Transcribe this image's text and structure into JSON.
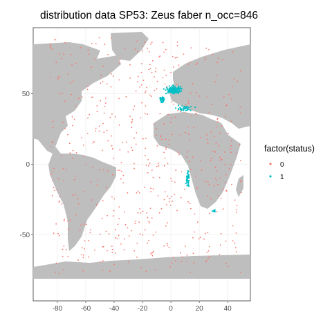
{
  "chart_data": {
    "type": "scatter",
    "title": "distribution data SP53: Zeus faber n_occ=846",
    "xlabel": "",
    "ylabel": "",
    "xlim": [
      -97,
      56
    ],
    "ylim": [
      -97,
      97
    ],
    "x_ticks": [
      -80,
      -60,
      -40,
      -20,
      0,
      20,
      40
    ],
    "y_ticks": [
      -50,
      0,
      50
    ],
    "x_tick_labels": [
      "-80",
      "-60",
      "-40",
      "-20",
      "0",
      "20",
      "40"
    ],
    "y_tick_labels": [
      "-50",
      "0",
      "50"
    ],
    "grid": true,
    "land_color": "#bebebe",
    "legend": {
      "title": "factor(status)",
      "position": "right",
      "entries": [
        {
          "label": "0",
          "color": "#f8766d"
        },
        {
          "label": "1",
          "color": "#00bfc4"
        }
      ]
    },
    "series": [
      {
        "name": "1",
        "color": "#00bfc4",
        "clusters": [
          {
            "lon": 2,
            "lat": 53,
            "spread": [
              9,
              5
            ],
            "count": 140
          },
          {
            "lon": -6,
            "lat": 46,
            "spread": [
              3,
              4
            ],
            "count": 35
          },
          {
            "lon": 10,
            "lat": 40,
            "spread": [
              10,
              3
            ],
            "count": 35
          },
          {
            "lon": 12,
            "lat": -10,
            "spread": [
              2,
              8
            ],
            "count": 40
          },
          {
            "lon": 30,
            "lat": -33,
            "spread": [
              3,
              2
            ],
            "count": 8
          }
        ]
      },
      {
        "name": "0",
        "color": "#f8766d",
        "extent": {
          "lon": [
            -85,
            50
          ],
          "lat": [
            -78,
            90
          ]
        },
        "count": 588
      }
    ]
  }
}
